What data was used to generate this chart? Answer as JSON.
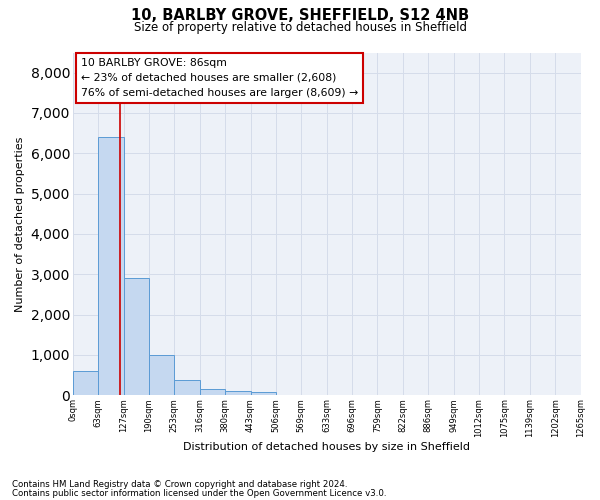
{
  "title_line1": "10, BARLBY GROVE, SHEFFIELD, S12 4NB",
  "title_line2": "Size of property relative to detached houses in Sheffield",
  "xlabel": "Distribution of detached houses by size in Sheffield",
  "ylabel": "Number of detached properties",
  "bar_values": [
    600,
    6400,
    2900,
    1000,
    380,
    160,
    100,
    80,
    0,
    0,
    0,
    0,
    0,
    0,
    0,
    0,
    0,
    0,
    0,
    0
  ],
  "bin_labels": [
    "0sqm",
    "63sqm",
    "127sqm",
    "190sqm",
    "253sqm",
    "316sqm",
    "380sqm",
    "443sqm",
    "506sqm",
    "569sqm",
    "633sqm",
    "696sqm",
    "759sqm",
    "822sqm",
    "886sqm",
    "949sqm",
    "1012sqm",
    "1075sqm",
    "1139sqm",
    "1202sqm",
    "1265sqm"
  ],
  "annotation_line1": "10 BARLBY GROVE: 86sqm",
  "annotation_line2": "← 23% of detached houses are smaller (2,608)",
  "annotation_line3": "76% of semi-detached houses are larger (8,609) →",
  "vline_position": 1.37,
  "bar_color": "#c5d8f0",
  "bar_edge_color": "#5b9bd5",
  "vline_color": "#cc0000",
  "grid_color": "#d5dcea",
  "background_color": "#edf1f8",
  "ylim_max": 8500,
  "ytick_max": 8000,
  "ytick_step": 1000,
  "annotation_box_color": "#ffffff",
  "annotation_box_edge": "#cc0000",
  "footnote_line1": "Contains HM Land Registry data © Crown copyright and database right 2024.",
  "footnote_line2": "Contains public sector information licensed under the Open Government Licence v3.0."
}
